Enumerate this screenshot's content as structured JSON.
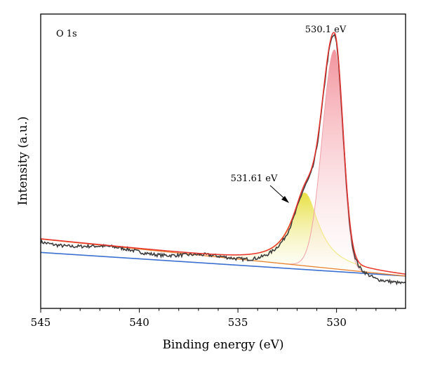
{
  "chart_data": {
    "type": "line",
    "title": "",
    "panel_label": "O 1s",
    "xlabel": "Binding energy (eV)",
    "ylabel": "Intensity (a.u.)",
    "x_reversed": true,
    "xlim": [
      545,
      526.5
    ],
    "xticks": [
      545,
      540,
      535,
      530
    ],
    "ylim": [
      -0.18,
      1.03
    ],
    "y_ticks_shown": false,
    "grid": false,
    "legend": "none",
    "colors": {
      "raw": "#3d3d3d",
      "envelope": "#e8332e",
      "background": "#3a6fd0",
      "background_orange": "#e8822e",
      "peak1_fill_top": "#f28e98",
      "peak1_line": "#f0a0a8",
      "peak2_fill_top": "#e6de38",
      "peak2_line": "#f0e878"
    },
    "background": {
      "x": [
        545,
        526.5
      ],
      "y": [
        0.05,
        -0.047
      ]
    },
    "peaks": [
      {
        "label": "530.1 eV",
        "center": 530.1,
        "height": 0.9,
        "fwhm": 1.2,
        "tail": "high-BE-gaussian",
        "fill_top": "#f28e98"
      },
      {
        "label": "531.61 eV",
        "center": 531.61,
        "height": 0.3,
        "fwhm": 1.7,
        "shape": "lorentzian-ish",
        "fill_top": "#e6de38"
      }
    ],
    "annotations": [
      {
        "text": "530.1 eV",
        "x": 530.1,
        "y": 0.955
      },
      {
        "text": "531.61 eV",
        "x": 531.9,
        "y": 0.34
      }
    ]
  }
}
